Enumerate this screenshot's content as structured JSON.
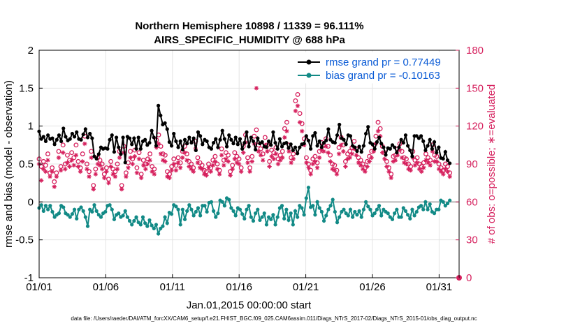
{
  "chart_data": {
    "type": "line",
    "title": [
      "Northern Hemisphere 10898 / 11339 = 96.111%",
      "AIRS_SPECIFIC_HUMIDITY @ 688 hPa"
    ],
    "xlabel": "Jan.01,2015 00:00:00 start",
    "ylabel_left": "rmse and bias (model - observation)",
    "ylabel_right": "# of obs: o=possible; ∗=evaluated",
    "xlim": [
      0,
      31.5
    ],
    "ylim_left": [
      -1,
      2
    ],
    "ylim_right": [
      0,
      180
    ],
    "x_ticks": [
      {
        "x": 0,
        "label": "01/01"
      },
      {
        "x": 5,
        "label": "01/06"
      },
      {
        "x": 10,
        "label": "01/11"
      },
      {
        "x": 15,
        "label": "01/16"
      },
      {
        "x": 20,
        "label": "01/21"
      },
      {
        "x": 25,
        "label": "01/26"
      },
      {
        "x": 30,
        "label": "01/31"
      }
    ],
    "y_ticks_left": [
      "-1",
      "-0.5",
      "0",
      "0.5",
      "1",
      "1.5",
      "2"
    ],
    "y_ticks_right": [
      "0",
      "30",
      "60",
      "90",
      "120",
      "150",
      "180"
    ],
    "grid": true,
    "zero_line": true,
    "legend_position": "top-right",
    "colors": {
      "rmse": "#000000",
      "bias": "#128a86",
      "obs": "#d6215e",
      "zero": "#b8b8b8",
      "legend_text": "#0a5bd6"
    },
    "series": [
      {
        "name": "rmse grand pr = 0.77449",
        "axis": "left",
        "values": [
          0.93,
          0.83,
          0.86,
          0.8,
          0.88,
          0.83,
          0.84,
          0.76,
          0.82,
          0.88,
          0.8,
          0.97,
          0.86,
          0.81,
          0.83,
          0.9,
          0.86,
          0.92,
          0.83,
          0.82,
          0.89,
          0.96,
          0.85,
          0.9,
          0.84,
          0.6,
          0.57,
          0.63,
          0.72,
          0.7,
          0.71,
          0.7,
          0.82,
          0.88,
          0.66,
          0.85,
          0.72,
          0.63,
          0.85,
          0.52,
          0.86,
          0.84,
          0.76,
          0.84,
          0.7,
          0.85,
          0.7,
          0.8,
          0.82,
          0.75,
          0.78,
          0.94,
          0.85,
          0.74,
          1.27,
          1.14,
          1.02,
          1.04,
          0.96,
          0.79,
          0.74,
          0.9,
          0.8,
          0.72,
          0.8,
          0.69,
          0.82,
          0.77,
          0.85,
          0.78,
          0.84,
          0.68,
          0.92,
          0.87,
          0.76,
          0.82,
          0.8,
          0.72,
          0.7,
          0.78,
          0.83,
          0.72,
          0.82,
          0.94,
          0.83,
          0.73,
          0.88,
          0.82,
          0.77,
          0.85,
          0.76,
          0.83,
          0.7,
          0.78,
          0.92,
          0.73,
          0.85,
          0.8,
          0.69,
          0.84,
          0.77,
          0.79,
          0.73,
          0.72,
          0.8,
          0.75,
          0.92,
          0.78,
          0.7,
          0.83,
          0.73,
          0.77,
          0.78,
          0.71,
          0.76,
          0.68,
          0.72,
          0.64,
          0.72,
          0.76,
          0.77,
          0.87,
          0.81,
          0.7,
          0.87,
          0.91,
          0.74,
          0.8,
          0.72,
          0.78,
          0.81,
          0.96,
          0.82,
          0.79,
          0.78,
          0.88,
          1.02,
          0.84,
          0.82,
          0.76,
          0.88,
          0.87,
          0.74,
          0.72,
          0.67,
          0.73,
          0.66,
          0.74,
          0.9,
          0.99,
          0.78,
          0.76,
          0.7,
          0.79,
          0.85,
          0.77,
          0.72,
          0.62,
          0.71,
          0.7,
          0.75,
          0.72,
          0.65,
          0.72,
          0.82,
          0.78,
          0.88,
          0.74,
          0.68,
          0.6,
          0.87,
          0.87,
          0.84,
          0.87,
          0.8,
          0.68,
          0.74,
          0.82,
          0.7,
          0.79,
          0.65,
          0.72,
          0.58,
          0.57,
          0.66,
          0.55,
          0.51
        ]
      },
      {
        "name": "bias grand pr = -0.10163",
        "axis": "left",
        "values": [
          -0.08,
          -0.04,
          -0.12,
          -0.05,
          -0.1,
          -0.05,
          -0.13,
          -0.2,
          -0.17,
          -0.15,
          -0.05,
          -0.07,
          -0.15,
          -0.17,
          -0.2,
          -0.16,
          -0.1,
          -0.22,
          -0.1,
          -0.07,
          -0.12,
          -0.2,
          -0.32,
          -0.1,
          -0.13,
          -0.04,
          -0.12,
          -0.17,
          -0.2,
          -0.15,
          -0.13,
          -0.05,
          -0.04,
          -0.1,
          -0.23,
          -0.17,
          -0.15,
          -0.2,
          -0.18,
          -0.12,
          -0.2,
          -0.25,
          -0.3,
          -0.25,
          -0.2,
          -0.27,
          -0.3,
          -0.2,
          -0.28,
          -0.32,
          -0.24,
          -0.31,
          -0.35,
          -0.3,
          -0.42,
          -0.35,
          -0.32,
          -0.2,
          -0.28,
          -0.14,
          -0.16,
          -0.04,
          -0.06,
          -0.1,
          -0.3,
          -0.1,
          -0.23,
          -0.12,
          -0.04,
          -0.1,
          -0.18,
          -0.13,
          -0.08,
          -0.18,
          -0.05,
          -0.05,
          -0.13,
          -0.01,
          0.0,
          -0.12,
          -0.2,
          -0.15,
          0.02,
          0.0,
          -0.05,
          0.05,
          0.03,
          -0.08,
          -0.12,
          -0.18,
          -0.08,
          -0.1,
          -0.16,
          -0.22,
          -0.1,
          -0.05,
          -0.2,
          -0.25,
          -0.15,
          -0.1,
          -0.24,
          -0.2,
          -0.15,
          -0.3,
          -0.2,
          -0.23,
          -0.17,
          -0.3,
          -0.2,
          -0.08,
          -0.05,
          -0.22,
          -0.1,
          -0.24,
          -0.15,
          -0.3,
          -0.12,
          -0.2,
          -0.05,
          -0.08,
          -0.17,
          0.05,
          0.19,
          -0.07,
          -0.05,
          -0.17,
          0.0,
          -0.08,
          -0.13,
          -0.25,
          -0.18,
          -0.1,
          -0.05,
          0.03,
          -0.13,
          -0.27,
          -0.2,
          -0.13,
          -0.1,
          -0.15,
          -0.18,
          -0.1,
          -0.2,
          -0.13,
          -0.17,
          -0.12,
          -0.2,
          -0.1,
          0.0,
          -0.06,
          -0.1,
          -0.18,
          -0.15,
          -0.1,
          -0.05,
          -0.18,
          -0.1,
          -0.13,
          -0.15,
          -0.2,
          -0.23,
          -0.15,
          -0.1,
          -0.2,
          -0.2,
          -0.08,
          -0.12,
          -0.17,
          -0.22,
          -0.1,
          -0.18,
          -0.13,
          -0.07,
          -0.05,
          -0.1,
          0.0,
          -0.1,
          -0.03,
          -0.13,
          -0.15,
          -0.1,
          -0.1,
          0.02,
          0.0,
          -0.05,
          -0.02,
          0.02
        ]
      },
      {
        "name": "possible",
        "axis": "right",
        "values": [
          94,
          88,
          92,
          89,
          98,
          83,
          87,
          76,
          83,
          100,
          88,
          105,
          90,
          97,
          93,
          99,
          95,
          105,
          92,
          87,
          98,
          112,
          90,
          84,
          100,
          73,
          86,
          95,
          93,
          90,
          82,
          87,
          78,
          92,
          86,
          84,
          90,
          100,
          73,
          104,
          83,
          91,
          100,
          94,
          101,
          87,
          99,
          82,
          93,
          90,
          94,
          98,
          88,
          86,
          109,
          113,
          104,
          98,
          97,
          84,
          82,
          88,
          94,
          89,
          95,
          91,
          100,
          104,
          98,
          92,
          90,
          87,
          108,
          95,
          91,
          89,
          85,
          84,
          90,
          87,
          93,
          96,
          90,
          85,
          102,
          93,
          99,
          97,
          84,
          89,
          99,
          96,
          94,
          87,
          104,
          113,
          95,
          87,
          96,
          112,
          117,
          105,
          102,
          98,
          111,
          105,
          92,
          101,
          99,
          103,
          94,
          97,
          100,
          118,
          123,
          105,
          95,
          98,
          140,
          145,
          130,
          122,
          110,
          95,
          90,
          85,
          94,
          96,
          91,
          100,
          107,
          105,
          110,
          104,
          97,
          90,
          89,
          85,
          103,
          111,
          105,
          92,
          98,
          100,
          103,
          108,
          102,
          95,
          93,
          90,
          87,
          92,
          96,
          100,
          105,
          112,
          123,
          118,
          104,
          99,
          92,
          87,
          82,
          96,
          97,
          102,
          106,
          100,
          95,
          94,
          90,
          88,
          100,
          93,
          95,
          90,
          88,
          91,
          98,
          95,
          93,
          105,
          97,
          96,
          90,
          87,
          85,
          90,
          88,
          83
        ]
      },
      {
        "name": "evaluated",
        "axis": "right",
        "values": [
          90,
          77,
          86,
          84,
          93,
          80,
          84,
          72,
          80,
          95,
          85,
          99,
          86,
          91,
          88,
          93,
          89,
          97,
          88,
          84,
          92,
          106,
          86,
          80,
          95,
          70,
          82,
          90,
          89,
          86,
          79,
          84,
          75,
          88,
          82,
          80,
          86,
          95,
          70,
          99,
          80,
          87,
          95,
          90,
          96,
          83,
          94,
          79,
          89,
          86,
          90,
          93,
          84,
          82,
          103,
          106,
          98,
          93,
          92,
          80,
          79,
          85,
          90,
          85,
          91,
          87,
          95,
          99,
          93,
          88,
          86,
          84,
          102,
          91,
          87,
          86,
          82,
          81,
          87,
          84,
          89,
          92,
          86,
          82,
          97,
          89,
          94,
          92,
          81,
          86,
          94,
          91,
          90,
          84,
          99,
          107,
          91,
          84,
          92,
          106,
          150,
          100,
          97,
          93,
          105,
          100,
          88,
          96,
          94,
          98,
          90,
          93,
          95,
          111,
          116,
          100,
          91,
          94,
          132,
          136,
          123,
          116,
          105,
          91,
          87,
          82,
          90,
          92,
          87,
          95,
          101,
          100,
          104,
          99,
          92,
          86,
          85,
          82,
          98,
          105,
          100,
          88,
          94,
          95,
          98,
          102,
          97,
          91,
          89,
          86,
          84,
          88,
          92,
          95,
          100,
          106,
          116,
          112,
          99,
          94,
          88,
          84,
          79,
          92,
          93,
          97,
          101,
          95,
          91,
          90,
          86,
          85,
          95,
          89,
          91,
          86,
          84,
          87,
          93,
          91,
          89,
          100,
          92,
          92,
          86,
          84,
          82,
          86,
          84,
          80
        ]
      }
    ],
    "footer": "data file: /Users/raeder/DAI/ATM_forcXX/CAM6_setup/f.e21.FHIST_BGC.f09_025.CAM6assim.011/Diags_NTrS_2017-02/Diags_NTrS_2015-01/obs_diag_output.nc"
  }
}
